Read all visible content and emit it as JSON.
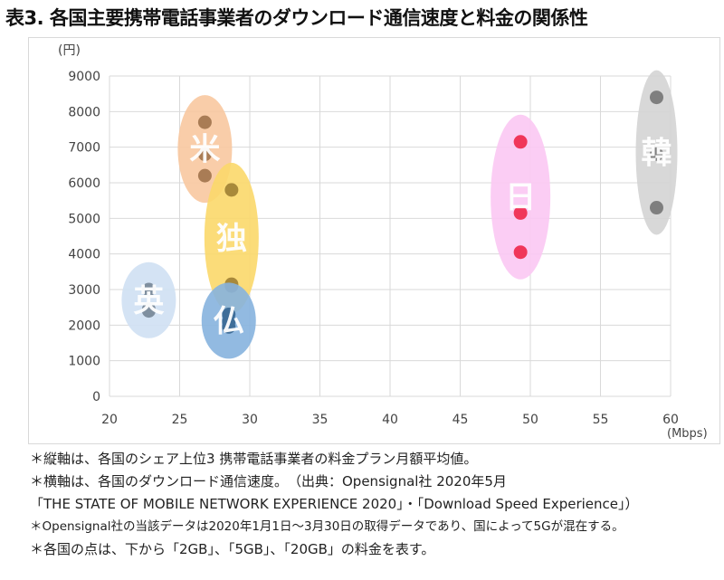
{
  "title": "表3. 各国主要携帯電話事業者のダウンロード通信速度と料金の関係性",
  "chart_data": {
    "type": "scatter",
    "title": "各国主要携帯電話事業者のダウンロード通信速度と料金の関係性",
    "xlabel": "(Mbps)",
    "ylabel": "(円)",
    "xlim": [
      20,
      60
    ],
    "ylim": [
      0,
      9000
    ],
    "x_ticks": [
      20,
      25,
      30,
      35,
      40,
      45,
      50,
      55,
      60
    ],
    "y_ticks": [
      0,
      1000,
      2000,
      3000,
      4000,
      5000,
      6000,
      7000,
      8000,
      9000
    ],
    "grid": true,
    "legend": "none (country labels drawn on ellipses)",
    "point_meaning": [
      "2GB",
      "5GB",
      "20GB"
    ],
    "series": [
      {
        "name": "米",
        "country": "US",
        "color": "#a97c55",
        "ellipse_color": "#f8c8a0",
        "x": 26.8,
        "values": [
          6200,
          6800,
          7700
        ]
      },
      {
        "name": "独",
        "country": "Germany",
        "color": "#a8893a",
        "ellipse_color": "#fbd86a",
        "x": 28.7,
        "values": [
          3100,
          3150,
          5800
        ]
      },
      {
        "name": "英",
        "country": "UK",
        "color": "#7f8f9f",
        "ellipse_color": "#cfe0f3",
        "x": 22.8,
        "values": [
          2400,
          2450,
          3000
        ]
      },
      {
        "name": "仏",
        "country": "France",
        "color": "#3f6e99",
        "ellipse_color": "#86b2de",
        "x": 28.5,
        "values": [
          1950,
          2100,
          2300
        ]
      },
      {
        "name": "日",
        "country": "Japan",
        "color": "#f0365a",
        "ellipse_color": "#fbc8f3",
        "x": 49.3,
        "values": [
          4050,
          5150,
          7150
        ]
      },
      {
        "name": "韓",
        "country": "Korea",
        "color": "#7f7f7f",
        "ellipse_color": "#d4d4d4",
        "x": 59.0,
        "values": [
          5300,
          6800,
          8400
        ]
      }
    ]
  },
  "notes": [
    "＊縦軸は、各国のシェア上位3 携帯電話事業者の料金プラン月額平均値。",
    "＊横軸は、各国のダウンロード通信速度。　（出典：Opensignal社 2020年5月",
    "「THE STATE OF MOBILE NETWORK EXPERIENCE 2020」・「Download Speed Experience」）",
    "＊Opensignal社の当該データは2020年1月1日～3月30日の取得データであり、国によって5Gが混在する。",
    "＊各国の点は、下から「2GB」、「5GB」、「20GB」の料金を表す。"
  ]
}
